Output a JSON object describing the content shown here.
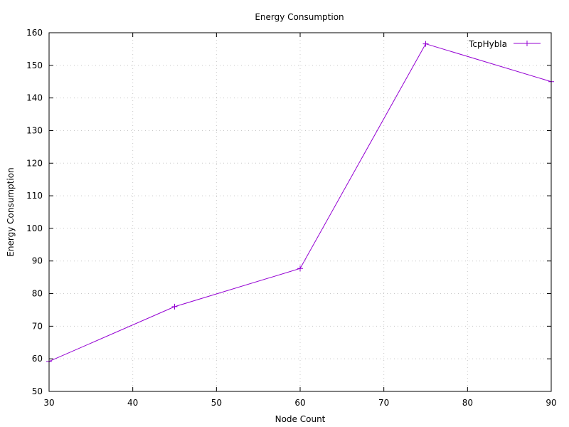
{
  "chart_data": {
    "type": "line",
    "title": "Energy Consumption",
    "xlabel": "Node Count",
    "ylabel": "Energy Consumption",
    "xlim": [
      30,
      90
    ],
    "ylim": [
      50,
      160
    ],
    "xticks": [
      30,
      40,
      50,
      60,
      70,
      80,
      90
    ],
    "yticks": [
      50,
      60,
      70,
      80,
      90,
      100,
      110,
      120,
      130,
      140,
      150,
      160
    ],
    "grid": true,
    "legend_position": "top-right",
    "series": [
      {
        "name": "TcpHybla",
        "color": "#9400d3",
        "marker": "plus",
        "x": [
          30,
          45,
          60,
          75,
          90
        ],
        "y": [
          59.2,
          76.0,
          87.7,
          156.6,
          145.0
        ]
      }
    ]
  }
}
